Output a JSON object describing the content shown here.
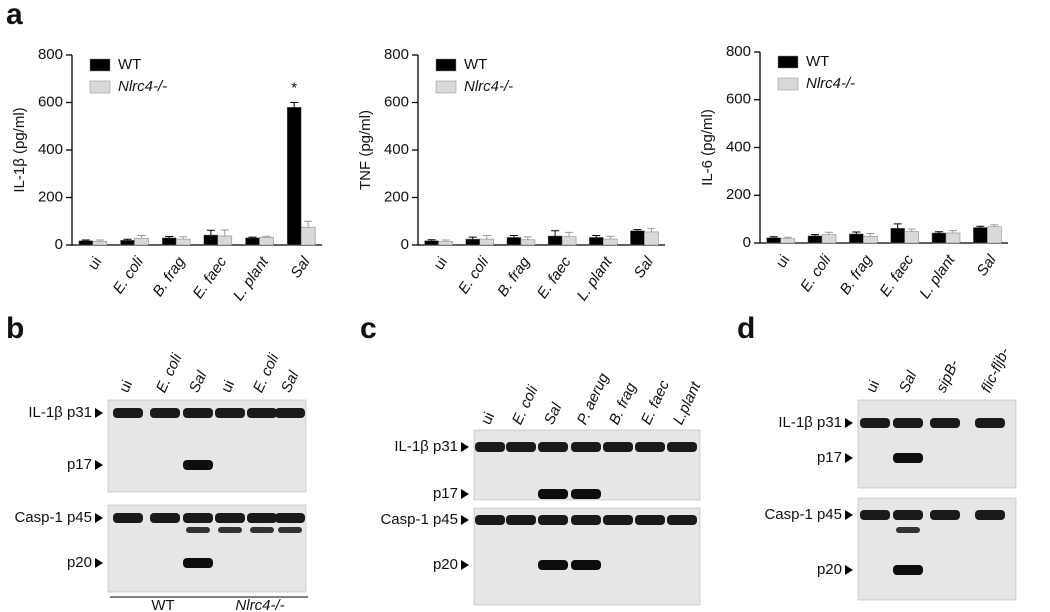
{
  "chart_data": [
    {
      "type": "bar",
      "panel_label": "a",
      "ylabel": "IL-1β (pg/ml)",
      "categories": [
        "ui",
        "E. coli",
        "B. frag",
        "E. faec",
        "L. plant",
        "Sal"
      ],
      "series": [
        {
          "name": "WT",
          "color": "#000000",
          "values": [
            18,
            20,
            30,
            42,
            30,
            580
          ],
          "errors": [
            3,
            4,
            6,
            20,
            3,
            20
          ]
        },
        {
          "name": "Nlrc4-/-",
          "color": "#d9d9d9",
          "values": [
            16,
            28,
            25,
            38,
            32,
            75
          ],
          "errors": [
            5,
            12,
            10,
            25,
            5,
            25
          ]
        }
      ],
      "annotation": "*",
      "ylim": [
        0,
        800
      ],
      "yticks": [
        0,
        200,
        400,
        600,
        800
      ]
    },
    {
      "type": "bar",
      "ylabel": "TNF (pg/ml)",
      "categories": [
        "ui",
        "E. coli",
        "B. frag",
        "E. faec",
        "L. plant",
        "Sal"
      ],
      "series": [
        {
          "name": "WT",
          "color": "#000000",
          "values": [
            18,
            25,
            32,
            38,
            32,
            60
          ],
          "errors": [
            4,
            8,
            8,
            22,
            8,
            5
          ]
        },
        {
          "name": "Nlrc4-/-",
          "color": "#d9d9d9",
          "values": [
            15,
            25,
            22,
            35,
            25,
            55
          ],
          "errors": [
            6,
            15,
            12,
            18,
            12,
            15
          ]
        }
      ],
      "ylim": [
        0,
        800
      ],
      "yticks": [
        0,
        200,
        400,
        600,
        800
      ]
    },
    {
      "type": "bar",
      "ylabel": "IL-6 (pg/ml)",
      "categories": [
        "ui",
        "E. coli",
        "B. frag",
        "E. faec",
        "L. plant",
        "Sal"
      ],
      "series": [
        {
          "name": "WT",
          "color": "#000000",
          "values": [
            22,
            30,
            38,
            62,
            42,
            65
          ],
          "errors": [
            4,
            5,
            8,
            18,
            5,
            5
          ]
        },
        {
          "name": "Nlrc4-/-",
          "color": "#d9d9d9",
          "values": [
            18,
            35,
            28,
            48,
            42,
            68
          ],
          "errors": [
            6,
            10,
            12,
            10,
            10,
            8
          ]
        }
      ],
      "ylim": [
        0,
        800
      ],
      "yticks": [
        0,
        200,
        400,
        600,
        800
      ]
    }
  ],
  "blots": [
    {
      "panel_label": "b",
      "lanes": [
        "ui",
        "E. coli",
        "Sal",
        "ui",
        "E. coli",
        "Sal"
      ],
      "rows": [
        "IL-1β p31",
        "p17",
        "Casp-1 p45",
        "p20"
      ],
      "groups": [
        "WT",
        "Nlrc4-/-"
      ]
    },
    {
      "panel_label": "c",
      "lanes": [
        "ui",
        "E. coli",
        "Sal",
        "P. aerug",
        "B. frag",
        "E. faec",
        "L.plant"
      ],
      "rows": [
        "IL-1β p31",
        "p17",
        "Casp-1 p45",
        "p20"
      ]
    },
    {
      "panel_label": "d",
      "lanes": [
        "ui",
        "Sal",
        "sipB-",
        "flic-fljb-"
      ],
      "rows": [
        "IL-1β p31",
        "p17",
        "Casp-1 p45",
        "p20"
      ]
    }
  ]
}
